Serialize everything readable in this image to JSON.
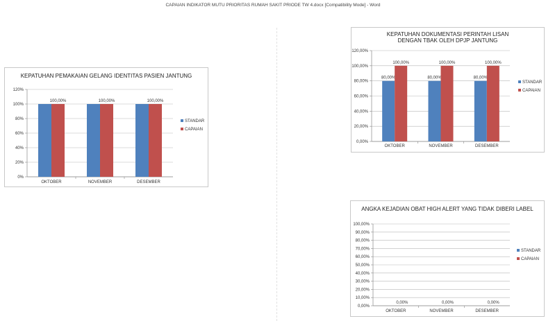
{
  "window": {
    "title": "CAPAIAN INDIKATOR MUTU PRIORITAS RUMAH SAKIT PRIODE TW 4.docx [Compatibility Mode]  -  Word"
  },
  "colors": {
    "standar": "#4f81bd",
    "capaian": "#c0504d",
    "grid": "#b7b7b7"
  },
  "chart_data": [
    {
      "type": "bar",
      "title": "KEPATUHAN PEMAKAIAN GELANG IDENTITAS PASIEN JANTUNG",
      "categories": [
        "OKTOBER",
        "NOVEMBER",
        "DESEMBER"
      ],
      "yticks": [
        "0%",
        "20%",
        "40%",
        "60%",
        "80%",
        "100%",
        "120%"
      ],
      "ylim": [
        0,
        120
      ],
      "legend_position": "right",
      "series": [
        {
          "name": "STANDAR",
          "values": [
            100,
            100,
            100
          ],
          "labels": [
            "",
            "",
            ""
          ]
        },
        {
          "name": "CAPAIAN",
          "values": [
            100,
            100,
            100
          ],
          "labels": [
            "100,00%",
            "100,00%",
            "100,00%"
          ]
        }
      ]
    },
    {
      "type": "bar",
      "title": "KEPATUHAN DOKUMENTASI PERINTAH LISAN DENGAN TBAK OLEH DPJP JANTUNG",
      "categories": [
        "OKTOBER",
        "NOVEMBER",
        "DESEMBER"
      ],
      "yticks": [
        "0,00%",
        "20,00%",
        "40,00%",
        "60,00%",
        "80,00%",
        "100,00%",
        "120,00%"
      ],
      "ylim": [
        0,
        120
      ],
      "legend_position": "right",
      "series": [
        {
          "name": "STANDAR",
          "values": [
            80,
            80,
            80
          ],
          "labels": [
            "80,00%",
            "80,00%",
            "80,00%"
          ]
        },
        {
          "name": "CAPAIAN",
          "values": [
            100,
            100,
            100
          ],
          "labels": [
            "100,00%",
            "100,00%",
            "100,00%"
          ]
        }
      ]
    },
    {
      "type": "bar",
      "title": "ANGKA KEJADIAN OBAT HIGH ALERT YANG TIDAK DIBERI LABEL",
      "categories": [
        "OKTOBER",
        "NOVEMBER",
        "DESEMBER"
      ],
      "yticks": [
        "0,00%",
        "10,00%",
        "20,00%",
        "30,00%",
        "40,00%",
        "50,00%",
        "60,00%",
        "70,00%",
        "80,00%",
        "90,00%",
        "100,00%"
      ],
      "ylim": [
        0,
        100
      ],
      "legend_position": "right",
      "series": [
        {
          "name": "STANDAR",
          "values": [
            0,
            0,
            0
          ],
          "labels": [
            "",
            "",
            ""
          ]
        },
        {
          "name": "CAPAIAN",
          "values": [
            0,
            0,
            0
          ],
          "labels": [
            "0,00%",
            "0,00%",
            "0,00%"
          ]
        }
      ]
    }
  ]
}
